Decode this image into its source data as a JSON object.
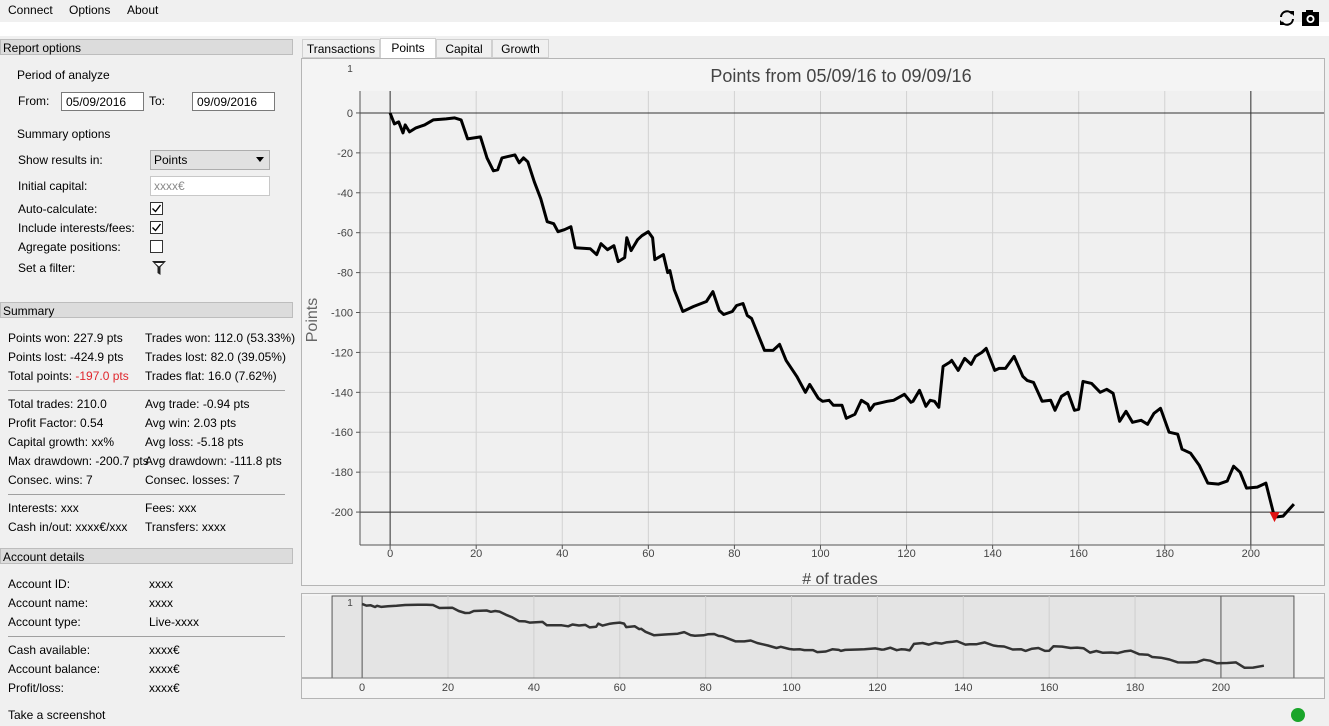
{
  "menu": [
    "Connect",
    "Options",
    "About"
  ],
  "report_options": {
    "title": "Report options",
    "period_label": "Period of analyze",
    "from_label": "From:",
    "from": "05/09/2016",
    "to_label": "To:",
    "to": "09/09/2016",
    "summary_label": "Summary options",
    "fields": [
      {
        "label": "Show results in:",
        "value": "Points"
      },
      {
        "label": "Initial capital:",
        "placeholder": "xxxx€"
      },
      {
        "label": "Auto-calculate:",
        "checked": true
      },
      {
        "label": "Include interests/fees:",
        "checked": true
      },
      {
        "label": "Agregate positions:",
        "checked": false
      },
      {
        "label": "Set a filter:"
      }
    ]
  },
  "summary": {
    "title": "Summary",
    "groups": [
      [
        [
          {
            "label": "Points won:",
            "value": "227.9 pts"
          },
          {
            "label": "Trades won:",
            "value": "112.0 (53.33%)"
          }
        ],
        [
          {
            "label": "Points lost:",
            "value": "-424.9 pts"
          },
          {
            "label": "Trades lost:",
            "value": "82.0 (39.05%)"
          }
        ],
        [
          {
            "label": "Total points:",
            "value": "-197.0 pts",
            "color": "#e0262c"
          },
          {
            "label": "Trades flat:",
            "value": "16.0 (7.62%)"
          }
        ]
      ],
      [
        [
          {
            "label": "Total trades:",
            "value": "210.0"
          },
          {
            "label": "Avg trade:",
            "value": "-0.94 pts"
          }
        ],
        [
          {
            "label": "Profit Factor:",
            "value": "0.54"
          },
          {
            "label": "Avg win:",
            "value": "2.03 pts"
          }
        ],
        [
          {
            "label": "Capital growth:",
            "value": "xx%"
          },
          {
            "label": "Avg loss:",
            "value": "-5.18 pts"
          }
        ],
        [
          {
            "label": "Max drawdown:",
            "value": "-200.7 pts"
          },
          {
            "label": "Avg drawdown:",
            "value": "-111.8 pts"
          }
        ],
        [
          {
            "label": "Consec. wins:",
            "value": "7"
          },
          {
            "label": "Consec. losses:",
            "value": "7"
          }
        ]
      ],
      [
        [
          {
            "label": "Interests:",
            "value": "xxx"
          },
          {
            "label": "Fees:",
            "value": "xxx"
          }
        ],
        [
          {
            "label": "Cash in/out:",
            "value": "xxxx€/xxx"
          },
          {
            "label": "Transfers:",
            "value": "xxxx"
          }
        ]
      ]
    ]
  },
  "account": {
    "title": "Account details",
    "groups": [
      [
        {
          "label": "Account ID:",
          "value": "xxxx"
        },
        {
          "label": "Account name:",
          "value": "xxxx"
        },
        {
          "label": "Account type:",
          "value": "Live-xxxx"
        }
      ],
      [
        {
          "label": "Cash available:",
          "value": "xxxx€"
        },
        {
          "label": "Account balance:",
          "value": "xxxx€"
        },
        {
          "label": "Profit/loss:",
          "value": "xxxx€"
        }
      ]
    ]
  },
  "tabs": [
    "Transactions",
    "Points",
    "Capital",
    "Growth"
  ],
  "active_tab": 1,
  "status": "Take a screenshot",
  "chart_data": {
    "type": "line",
    "title": "Points from 05/09/16 to 09/09/16",
    "xlabel": "# of trades",
    "ylabel": "Points",
    "corner_label": "1",
    "color": "#000000",
    "x": [
      0,
      1,
      2,
      3,
      3.5,
      4.5,
      6,
      8,
      10,
      13,
      15,
      16.5,
      18,
      21,
      22.5,
      24,
      25,
      26,
      29,
      30,
      31,
      32,
      33.5,
      35,
      36.5,
      38,
      39,
      40.5,
      42,
      43,
      46.5,
      48,
      49,
      50.5,
      52,
      53,
      54.5,
      55,
      56,
      57.5,
      58.5,
      60,
      61,
      61.5,
      63.5,
      64.5,
      65,
      66,
      68,
      70.5,
      73.5,
      75,
      76.5,
      77.5,
      79.5,
      80.5,
      82,
      83,
      84,
      87,
      89,
      90.5,
      92,
      94.5,
      96.5,
      97.5,
      99.5,
      100.5,
      102,
      103,
      105,
      106,
      108,
      109.5,
      111,
      111.5,
      112.5,
      115.5,
      117,
      119.5,
      121,
      121.5,
      123,
      124.5,
      125.5,
      126.5,
      127.5,
      128.5,
      130,
      130.5,
      132,
      133.5,
      135,
      136,
      137.5,
      138.5,
      140.5,
      141.5,
      143,
      145,
      147,
      148,
      149.5,
      151.5,
      153.5,
      154.5,
      156,
      157.5,
      159,
      160,
      161,
      163,
      165,
      166.5,
      168,
      169.5,
      171,
      172.5,
      174.5,
      176,
      177.5,
      179,
      181,
      183,
      184,
      186,
      188,
      190,
      192.5,
      194.5,
      196,
      197.5,
      199,
      201.5,
      203.5,
      205.5,
      207.5,
      210
    ],
    "values": [
      0,
      -5.5,
      -4.5,
      -10,
      -6,
      -9.5,
      -7.5,
      -6,
      -3.5,
      -3,
      -2.5,
      -3.5,
      -13,
      -12,
      -22.5,
      -29,
      -28.5,
      -22.5,
      -21,
      -25,
      -22.5,
      -24.5,
      -34.5,
      -43,
      -54.5,
      -55.5,
      -59.5,
      -58.5,
      -57,
      -67.5,
      -68,
      -71,
      -65.5,
      -68.5,
      -66.5,
      -74.5,
      -72.5,
      -62.5,
      -69,
      -63.5,
      -61.5,
      -59.5,
      -62.5,
      -73.5,
      -71,
      -80,
      -79,
      -88.5,
      -99.5,
      -97,
      -94.5,
      -89.5,
      -99,
      -101,
      -99.5,
      -96.5,
      -95.5,
      -101.5,
      -103,
      -119,
      -119,
      -116,
      -124,
      -132,
      -140,
      -136,
      -143,
      -144.5,
      -144,
      -146.5,
      -146.5,
      -153,
      -151,
      -144,
      -146,
      -149,
      -146,
      -144.5,
      -144,
      -141,
      -145,
      -144.5,
      -139,
      -147,
      -144,
      -144.5,
      -147.5,
      -127,
      -125,
      -124,
      -129,
      -123,
      -126,
      -122,
      -120,
      -118,
      -129,
      -128,
      -128,
      -122,
      -132,
      -134,
      -135,
      -144.5,
      -144,
      -149,
      -142,
      -140,
      -149,
      -148.5,
      -134.5,
      -135.5,
      -140,
      -138.5,
      -140.5,
      -154.5,
      -149.5,
      -155,
      -154,
      -156,
      -150.5,
      -148,
      -160,
      -161,
      -168.5,
      -170.5,
      -176.5,
      -185.5,
      -186,
      -184.5,
      -177,
      -180,
      -188,
      -187.5,
      -185.5,
      -202.5,
      -202,
      -196
    ],
    "xlim": [
      -7,
      217
    ],
    "ylim": [
      -216.5,
      11
    ],
    "xticks": [
      0,
      20,
      40,
      60,
      80,
      100,
      120,
      140,
      160,
      180,
      200
    ],
    "yticks": [
      0,
      -20,
      -40,
      -60,
      -80,
      -100,
      -120,
      -140,
      -160,
      -180,
      -200
    ],
    "grid": true,
    "ref_x": [
      0,
      200
    ],
    "ref_y": [
      0,
      -200
    ],
    "marker": {
      "x": 205.5,
      "y": -200,
      "color": "#e01010"
    },
    "navigator": {
      "corner_label": "1",
      "color": "#333333",
      "xlim": [
        -14,
        224
      ],
      "ylim": [
        -235,
        25
      ],
      "xticks": [
        0,
        20,
        40,
        60,
        80,
        100,
        120,
        140,
        160,
        180,
        200
      ]
    }
  }
}
